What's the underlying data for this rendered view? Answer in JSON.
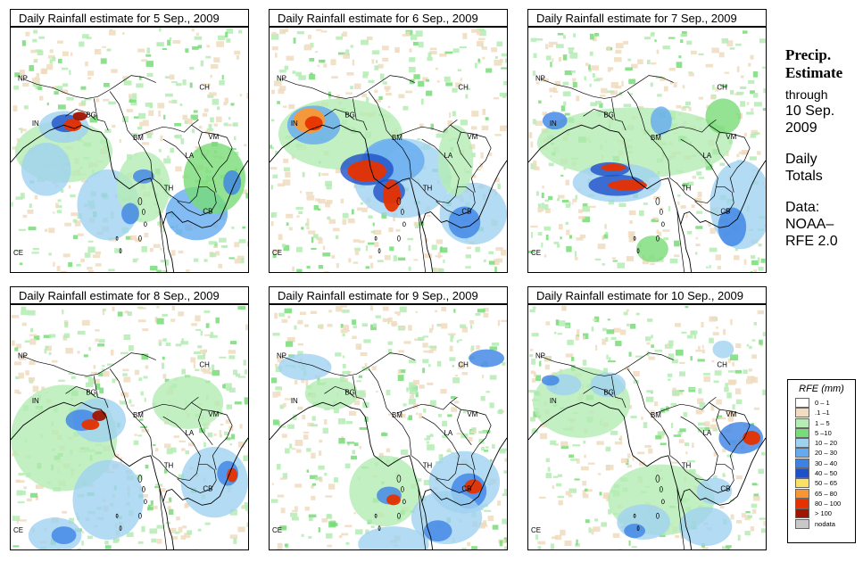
{
  "panels": [
    {
      "title": "Daily Rainfall estimate for  5 Sep., 2009",
      "date": "5 Sep., 2009"
    },
    {
      "title": "Daily Rainfall estimate for  6 Sep., 2009",
      "date": "6 Sep., 2009"
    },
    {
      "title": "Daily Rainfall estimate for  7 Sep., 2009",
      "date": "7 Sep., 2009"
    },
    {
      "title": "Daily Rainfall estimate for  8 Sep., 2009",
      "date": "8 Sep., 2009"
    },
    {
      "title": "Daily Rainfall estimate for  9 Sep., 2009",
      "date": "9 Sep., 2009"
    },
    {
      "title": "Daily Rainfall estimate for  10 Sep., 2009",
      "date": "10 Sep., 2009"
    }
  ],
  "country_labels": [
    "NP",
    "CH",
    "IN",
    "BG",
    "BM",
    "VM",
    "LA",
    "TH",
    "CB",
    "CE"
  ],
  "sidebar": {
    "title_line1": "Precip.",
    "title_line2": "Estimate",
    "through": "through",
    "date_line1": "10 Sep.",
    "date_line2": "2009",
    "daily_line1": "Daily",
    "daily_line2": "Totals",
    "data_line1": "Data:",
    "data_line2": "NOAA–",
    "data_line3": "RFE 2.0"
  },
  "legend": {
    "title": "RFE (mm)",
    "items": [
      {
        "label": "0 – 1",
        "color": "#ffffff"
      },
      {
        "label": ".1 –1",
        "color": "#f0dcc0"
      },
      {
        "label": "1 – 5",
        "color": "#b4ecb4"
      },
      {
        "label": "5 –10",
        "color": "#78dc78"
      },
      {
        "label": "10 – 20",
        "color": "#a0d2f0"
      },
      {
        "label": "20 – 30",
        "color": "#64aaf0"
      },
      {
        "label": "30 – 40",
        "color": "#3c82e6"
      },
      {
        "label": "40 – 50",
        "color": "#1e50c8"
      },
      {
        "label": "50 – 65",
        "color": "#fae164"
      },
      {
        "label": "65 – 80",
        "color": "#fa9632"
      },
      {
        "label": "80 – 100",
        "color": "#e63200"
      },
      {
        "label": "> 100",
        "color": "#a01400"
      },
      {
        "label": "nodata",
        "color": "#c8c8c8"
      }
    ]
  }
}
